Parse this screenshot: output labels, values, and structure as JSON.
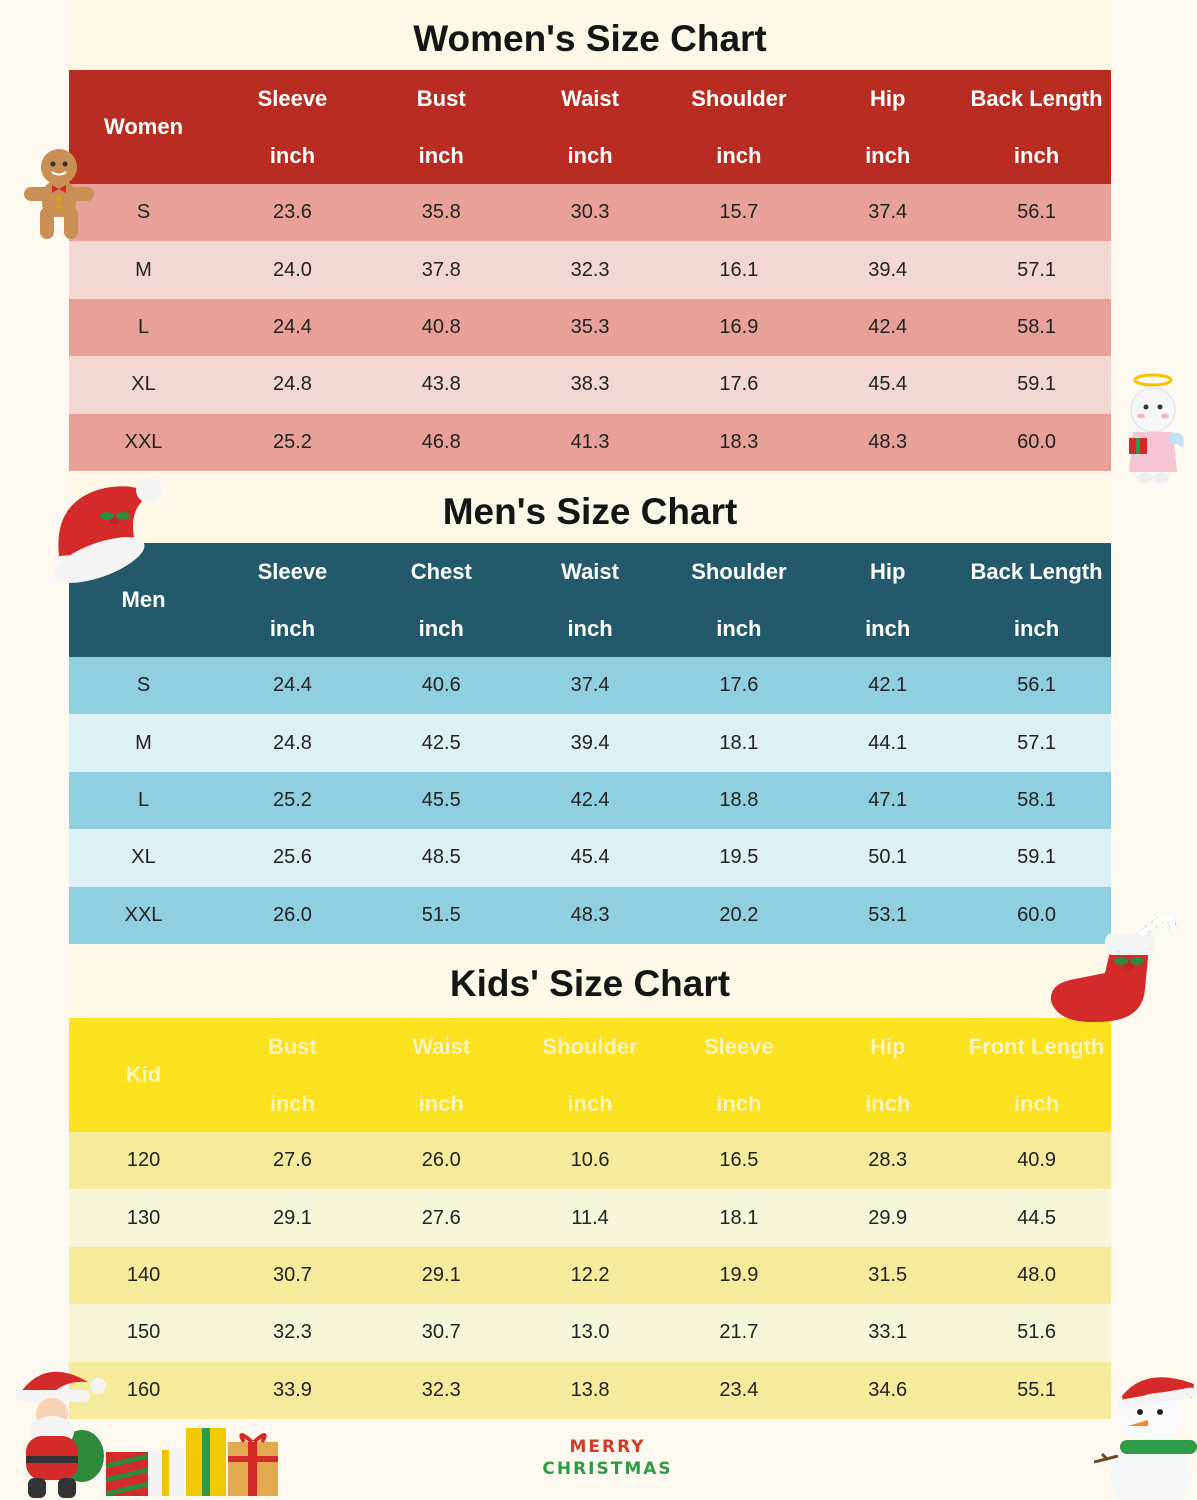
{
  "women": {
    "title": "Women's Size Chart",
    "header_label": "Women",
    "columns": [
      "Sleeve",
      "Bust",
      "Waist",
      "Shoulder",
      "Hip",
      "Back Length"
    ],
    "units": [
      "inch",
      "inch",
      "inch",
      "inch",
      "inch",
      "inch"
    ],
    "rows": [
      [
        "S",
        "23.6",
        "35.8",
        "30.3",
        "15.7",
        "37.4",
        "56.1"
      ],
      [
        "M",
        "24.0",
        "37.8",
        "32.3",
        "16.1",
        "39.4",
        "57.1"
      ],
      [
        "L",
        "24.4",
        "40.8",
        "35.3",
        "16.9",
        "42.4",
        "58.1"
      ],
      [
        "XL",
        "24.8",
        "43.8",
        "38.3",
        "17.6",
        "45.4",
        "59.1"
      ],
      [
        "XXL",
        "25.2",
        "46.8",
        "41.3",
        "18.3",
        "48.3",
        "60.0"
      ]
    ]
  },
  "men": {
    "title": "Men's Size Chart",
    "header_label": "Men",
    "columns": [
      "Sleeve",
      "Chest",
      "Waist",
      "Shoulder",
      "Hip",
      "Back Length"
    ],
    "units": [
      "inch",
      "inch",
      "inch",
      "inch",
      "inch",
      "inch"
    ],
    "rows": [
      [
        "S",
        "24.4",
        "40.6",
        "37.4",
        "17.6",
        "42.1",
        "56.1"
      ],
      [
        "M",
        "24.8",
        "42.5",
        "39.4",
        "18.1",
        "44.1",
        "57.1"
      ],
      [
        "L",
        "25.2",
        "45.5",
        "42.4",
        "18.8",
        "47.1",
        "58.1"
      ],
      [
        "XL",
        "25.6",
        "48.5",
        "45.4",
        "19.5",
        "50.1",
        "59.1"
      ],
      [
        "XXL",
        "26.0",
        "51.5",
        "48.3",
        "20.2",
        "53.1",
        "60.0"
      ]
    ]
  },
  "kids": {
    "title": "Kids' Size Chart",
    "header_label": "Kid",
    "columns": [
      "Bust",
      "Waist",
      "Shoulder",
      "Sleeve",
      "Hip",
      "Front Length"
    ],
    "units": [
      "inch",
      "inch",
      "inch",
      "inch",
      "inch",
      "inch"
    ],
    "rows": [
      [
        "120",
        "27.6",
        "26.0",
        "10.6",
        "16.5",
        "28.3",
        "40.9"
      ],
      [
        "130",
        "29.1",
        "27.6",
        "11.4",
        "18.1",
        "29.9",
        "44.5"
      ],
      [
        "140",
        "30.7",
        "29.1",
        "12.2",
        "19.9",
        "31.5",
        "48.0"
      ],
      [
        "150",
        "32.3",
        "30.7",
        "13.0",
        "21.7",
        "33.1",
        "51.6"
      ],
      [
        "160",
        "33.9",
        "32.3",
        "13.8",
        "23.4",
        "34.6",
        "55.1"
      ]
    ]
  },
  "footer": {
    "line1": "MERRY",
    "line2": "CHRISTMAS"
  },
  "decorations": [
    "gingerbread-man-icon",
    "angel-snowman-icon",
    "santa-hat-icon",
    "christmas-stocking-icon",
    "santa-claus-icon",
    "gift-boxes-icon",
    "snowman-icon"
  ],
  "colors": {
    "women_header": "#b82c21",
    "women_row_dark": "#e8a198",
    "women_row_light": "#f3d7d2",
    "men_header": "#225a6b",
    "men_row_dark": "#8fcfe0",
    "men_row_light": "#dcf0f6",
    "kids_header": "#fde220",
    "kids_row_dark": "#f4eb9c",
    "kids_row_light": "#f8f6d9"
  }
}
